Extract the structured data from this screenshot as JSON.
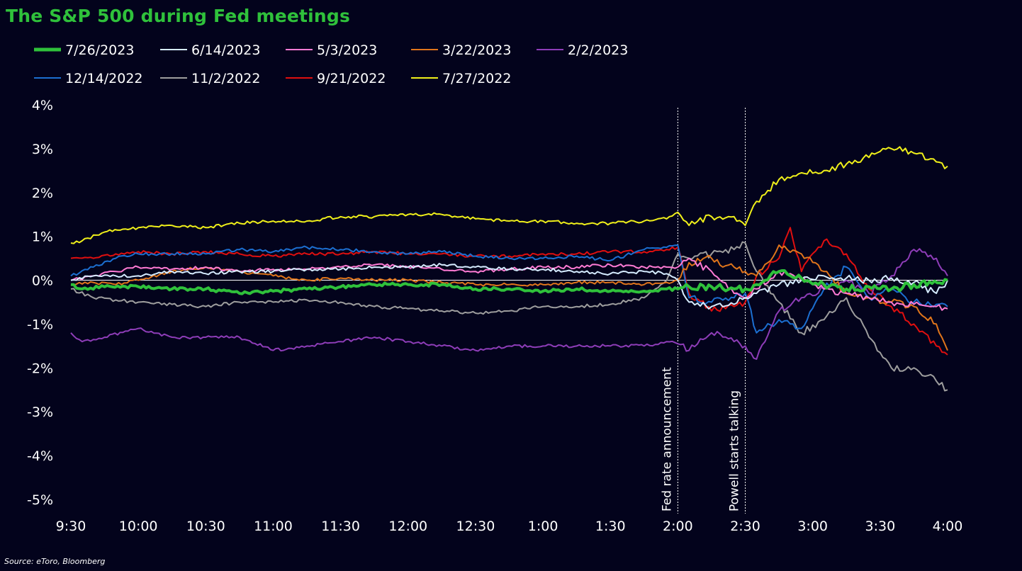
{
  "chart_data": {
    "type": "line",
    "title": "The S&P 500 during Fed meetings",
    "source": "Source: eToro, Bloomberg",
    "xlabel": "",
    "ylabel": "",
    "x_tick_labels": [
      "9:30",
      "10:00",
      "10:30",
      "11:00",
      "11:30",
      "12:00",
      "12:30",
      "1:00",
      "1:30",
      "2:00",
      "2:30",
      "3:00",
      "3:30",
      "4:00"
    ],
    "y_tick_labels": [
      "4%",
      "3%",
      "2%",
      "1%",
      "0%",
      "-1%",
      "-2%",
      "-3%",
      "-4%",
      "-5%"
    ],
    "y_ticks": [
      4,
      3,
      2,
      1,
      0,
      -1,
      -2,
      -3,
      -4,
      -5
    ],
    "ylim": [
      -5,
      4
    ],
    "x_unit": "minutes after 9:30",
    "xlim": [
      0,
      390
    ],
    "grid": false,
    "legend_position": "top",
    "annotations": [
      {
        "label": "Fed rate announcement",
        "x": 270
      },
      {
        "label": "Powell starts talking",
        "x": 300
      }
    ],
    "series": [
      {
        "name": "7/26/2023",
        "color": "#2fc13b",
        "width": 4,
        "x": [
          0,
          5,
          15,
          30,
          45,
          60,
          75,
          90,
          105,
          120,
          135,
          150,
          165,
          180,
          195,
          210,
          225,
          240,
          255,
          265,
          270,
          275,
          285,
          295,
          300,
          305,
          315,
          325,
          335,
          345,
          355,
          365,
          375,
          390
        ],
        "y": [
          -0.1,
          -0.2,
          -0.15,
          -0.15,
          -0.2,
          -0.2,
          -0.3,
          -0.25,
          -0.2,
          -0.15,
          -0.1,
          -0.1,
          -0.1,
          -0.2,
          -0.2,
          -0.25,
          -0.2,
          -0.25,
          -0.25,
          -0.2,
          -0.2,
          -0.15,
          -0.15,
          -0.2,
          -0.2,
          -0.1,
          0.2,
          0.05,
          -0.1,
          -0.2,
          -0.15,
          -0.2,
          -0.1,
          0.0
        ]
      },
      {
        "name": "6/14/2023",
        "color": "#d6ecff",
        "width": 2,
        "x": [
          0,
          10,
          20,
          30,
          45,
          60,
          75,
          90,
          105,
          120,
          135,
          150,
          165,
          180,
          195,
          210,
          225,
          240,
          255,
          265,
          270,
          275,
          285,
          295,
          300,
          305,
          315,
          325,
          335,
          345,
          355,
          365,
          375,
          385,
          390
        ],
        "y": [
          0.0,
          0.1,
          0.1,
          0.1,
          0.2,
          0.15,
          0.2,
          0.2,
          0.25,
          0.25,
          0.3,
          0.3,
          0.35,
          0.3,
          0.25,
          0.25,
          0.2,
          0.15,
          0.2,
          0.15,
          0.0,
          -0.5,
          -0.6,
          -0.55,
          -0.4,
          -0.3,
          -0.1,
          0.0,
          0.1,
          0.05,
          0.0,
          0.05,
          -0.05,
          -0.3,
          0.0
        ]
      },
      {
        "name": "5/3/2023",
        "color": "#ff7bd4",
        "width": 2,
        "x": [
          0,
          10,
          20,
          30,
          45,
          60,
          75,
          90,
          105,
          120,
          135,
          150,
          165,
          180,
          195,
          210,
          225,
          240,
          255,
          265,
          270,
          275,
          285,
          295,
          300,
          305,
          315,
          325,
          335,
          345,
          355,
          365,
          375,
          385,
          390
        ],
        "y": [
          0.0,
          0.1,
          0.2,
          0.3,
          0.25,
          0.3,
          0.2,
          0.25,
          0.25,
          0.3,
          0.35,
          0.3,
          0.25,
          0.2,
          0.25,
          0.3,
          0.3,
          0.35,
          0.3,
          0.3,
          0.3,
          0.5,
          0.2,
          -0.3,
          -0.4,
          -0.2,
          0.2,
          0.0,
          -0.2,
          -0.3,
          -0.4,
          -0.5,
          -0.55,
          -0.6,
          -0.65
        ]
      },
      {
        "name": "3/22/2023",
        "color": "#e0751b",
        "width": 2,
        "x": [
          0,
          10,
          20,
          30,
          45,
          60,
          75,
          90,
          105,
          120,
          135,
          150,
          165,
          180,
          195,
          210,
          225,
          240,
          255,
          265,
          270,
          275,
          285,
          290,
          295,
          300,
          305,
          310,
          315,
          325,
          335,
          345,
          355,
          365,
          375,
          385,
          390
        ],
        "y": [
          -0.1,
          -0.05,
          -0.1,
          0.0,
          0.2,
          0.3,
          0.2,
          0.1,
          0.0,
          0.05,
          0.0,
          0.0,
          -0.05,
          -0.1,
          -0.1,
          -0.1,
          -0.05,
          -0.05,
          -0.1,
          -0.05,
          0.0,
          0.4,
          0.5,
          0.3,
          0.3,
          0.2,
          0.1,
          0.4,
          0.8,
          0.6,
          0.2,
          -0.3,
          -0.4,
          -0.5,
          -0.6,
          -1.0,
          -1.6
        ]
      },
      {
        "name": "2/2/2023",
        "color": "#8e3db8",
        "width": 2,
        "x": [
          0,
          5,
          15,
          30,
          45,
          60,
          75,
          90,
          105,
          120,
          135,
          150,
          165,
          180,
          195,
          210,
          225,
          240,
          255,
          265,
          270,
          275,
          285,
          295,
          300,
          305,
          315,
          325,
          335,
          345,
          355,
          365,
          375,
          385,
          390
        ],
        "y": [
          -1.2,
          -1.4,
          -1.3,
          -1.1,
          -1.3,
          -1.3,
          -1.3,
          -1.6,
          -1.5,
          -1.4,
          -1.3,
          -1.4,
          -1.5,
          -1.6,
          -1.5,
          -1.5,
          -1.5,
          -1.5,
          -1.5,
          -1.4,
          -1.45,
          -1.6,
          -1.2,
          -1.4,
          -1.5,
          -1.8,
          -0.7,
          -0.4,
          -0.2,
          0.0,
          -0.3,
          0.1,
          0.7,
          0.5,
          0.1
        ]
      },
      {
        "name": "12/14/2022",
        "color": "#1c6fd1",
        "width": 2,
        "x": [
          0,
          10,
          20,
          30,
          45,
          60,
          75,
          90,
          105,
          120,
          135,
          150,
          165,
          180,
          195,
          210,
          225,
          240,
          255,
          265,
          270,
          275,
          285,
          295,
          300,
          305,
          315,
          325,
          335,
          345,
          355,
          365,
          375,
          385,
          390
        ],
        "y": [
          0.1,
          0.3,
          0.5,
          0.6,
          0.6,
          0.6,
          0.7,
          0.65,
          0.75,
          0.7,
          0.65,
          0.6,
          0.65,
          0.55,
          0.5,
          0.5,
          0.55,
          0.45,
          0.7,
          0.75,
          0.8,
          -0.4,
          -0.5,
          -0.4,
          -0.3,
          -1.2,
          -0.9,
          -1.1,
          -0.2,
          0.3,
          -0.4,
          -0.2,
          -0.5,
          -0.55,
          -0.6
        ]
      },
      {
        "name": "11/2/2022",
        "color": "#9e9e9e",
        "width": 2,
        "x": [
          0,
          10,
          20,
          30,
          45,
          60,
          75,
          90,
          105,
          120,
          135,
          150,
          165,
          180,
          195,
          210,
          225,
          240,
          255,
          265,
          270,
          275,
          285,
          295,
          300,
          305,
          315,
          325,
          335,
          345,
          355,
          365,
          375,
          385,
          390
        ],
        "y": [
          -0.2,
          -0.4,
          -0.45,
          -0.5,
          -0.55,
          -0.6,
          -0.5,
          -0.5,
          -0.45,
          -0.5,
          -0.6,
          -0.65,
          -0.7,
          -0.75,
          -0.7,
          -0.6,
          -0.6,
          -0.55,
          -0.4,
          0.0,
          0.6,
          0.5,
          0.6,
          0.7,
          0.85,
          0.2,
          -0.5,
          -1.2,
          -0.9,
          -0.4,
          -1.3,
          -2.0,
          -2.0,
          -2.3,
          -2.5
        ]
      },
      {
        "name": "9/21/2022",
        "color": "#e00f0f",
        "width": 2,
        "x": [
          0,
          10,
          20,
          30,
          45,
          60,
          75,
          90,
          105,
          120,
          135,
          150,
          165,
          180,
          195,
          210,
          225,
          240,
          255,
          265,
          270,
          275,
          285,
          295,
          300,
          305,
          315,
          320,
          325,
          335,
          345,
          355,
          365,
          375,
          385,
          390
        ],
        "y": [
          0.5,
          0.5,
          0.6,
          0.65,
          0.6,
          0.65,
          0.6,
          0.55,
          0.6,
          0.6,
          0.65,
          0.6,
          0.6,
          0.55,
          0.55,
          0.6,
          0.6,
          0.65,
          0.65,
          0.7,
          0.75,
          -0.3,
          -0.7,
          -0.6,
          -0.5,
          0.1,
          0.5,
          1.2,
          0.2,
          0.9,
          0.6,
          -0.2,
          -0.6,
          -1.0,
          -1.5,
          -1.7
        ]
      },
      {
        "name": "7/27/2022",
        "color": "#f0f01a",
        "width": 2,
        "x": [
          0,
          5,
          15,
          30,
          45,
          60,
          75,
          90,
          105,
          120,
          135,
          150,
          165,
          180,
          195,
          210,
          225,
          240,
          255,
          265,
          270,
          275,
          285,
          295,
          300,
          305,
          315,
          325,
          335,
          345,
          355,
          365,
          375,
          385,
          390
        ],
        "y": [
          0.85,
          0.9,
          1.1,
          1.2,
          1.25,
          1.2,
          1.3,
          1.35,
          1.35,
          1.45,
          1.45,
          1.5,
          1.5,
          1.4,
          1.35,
          1.35,
          1.3,
          1.3,
          1.35,
          1.4,
          1.55,
          1.25,
          1.45,
          1.45,
          1.25,
          1.8,
          2.3,
          2.45,
          2.5,
          2.65,
          2.8,
          3.0,
          2.9,
          2.7,
          2.6
        ]
      }
    ]
  }
}
